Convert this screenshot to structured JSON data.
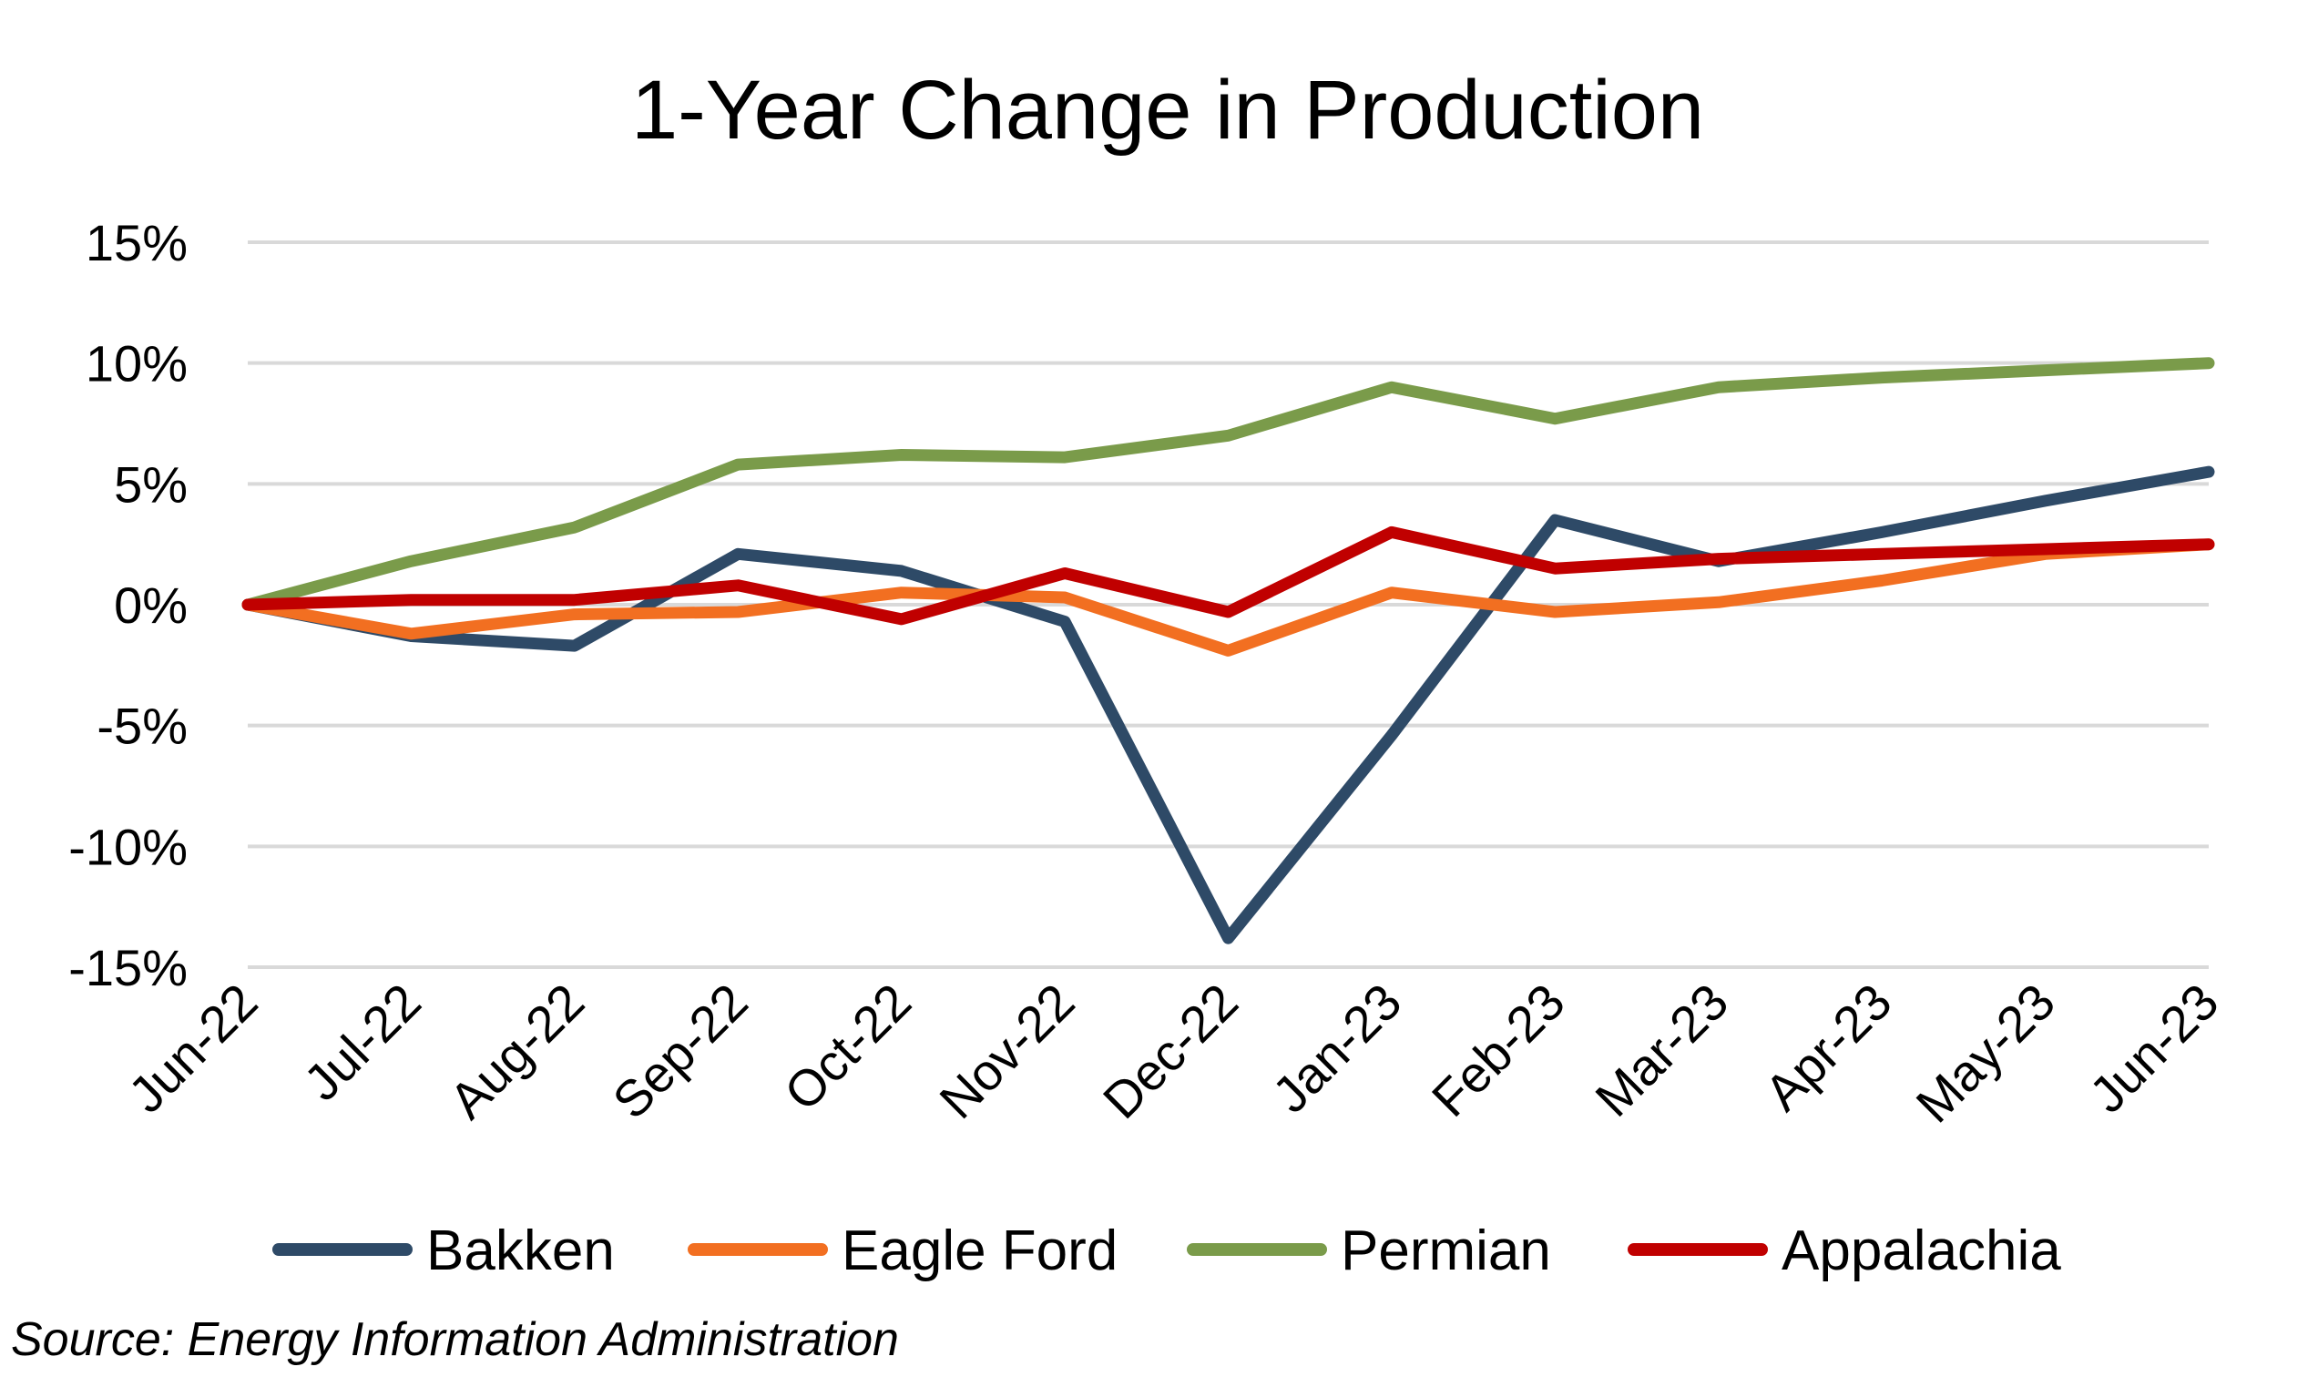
{
  "chart_data": {
    "type": "line",
    "title": "1-Year Change in Production",
    "xlabel": "",
    "ylabel": "",
    "categories": [
      "Jun-22",
      "Jul-22",
      "Aug-22",
      "Sep-22",
      "Oct-22",
      "Nov-22",
      "Dec-22",
      "Jan-23",
      "Feb-23",
      "Mar-23",
      "Apr-23",
      "May-23",
      "Jun-23"
    ],
    "ylim": [
      -15,
      15
    ],
    "yticks": [
      15,
      10,
      5,
      0,
      -5,
      -10,
      -15
    ],
    "ytick_labels": [
      "15%",
      "10%",
      "5%",
      "0%",
      "-5%",
      "-10%",
      "-15%"
    ],
    "grid": true,
    "legend_position": "bottom",
    "series": [
      {
        "name": "Bakken",
        "color": "#2e4a67",
        "values": [
          0,
          -1.3,
          -1.7,
          2.1,
          1.4,
          -0.7,
          -13.8,
          -5.4,
          3.5,
          1.8,
          3.0,
          4.3,
          5.5
        ]
      },
      {
        "name": "Eagle Ford",
        "color": "#f26f21",
        "values": [
          0,
          -1.2,
          -0.4,
          -0.3,
          0.5,
          0.3,
          -1.9,
          0.5,
          -0.3,
          0.1,
          1.0,
          2.1,
          2.5
        ]
      },
      {
        "name": "Permian",
        "color": "#7a9b4a",
        "values": [
          0,
          1.8,
          3.2,
          5.8,
          6.2,
          6.1,
          7.0,
          9.0,
          7.7,
          9.0,
          9.4,
          9.7,
          10.0
        ]
      },
      {
        "name": "Appalachia",
        "color": "#c00000",
        "values": [
          0,
          0.2,
          0.2,
          0.8,
          -0.6,
          1.3,
          -0.3,
          3.0,
          1.5,
          1.9,
          2.1,
          2.3,
          2.5
        ]
      }
    ],
    "source": "Source: Energy Information Administration"
  }
}
